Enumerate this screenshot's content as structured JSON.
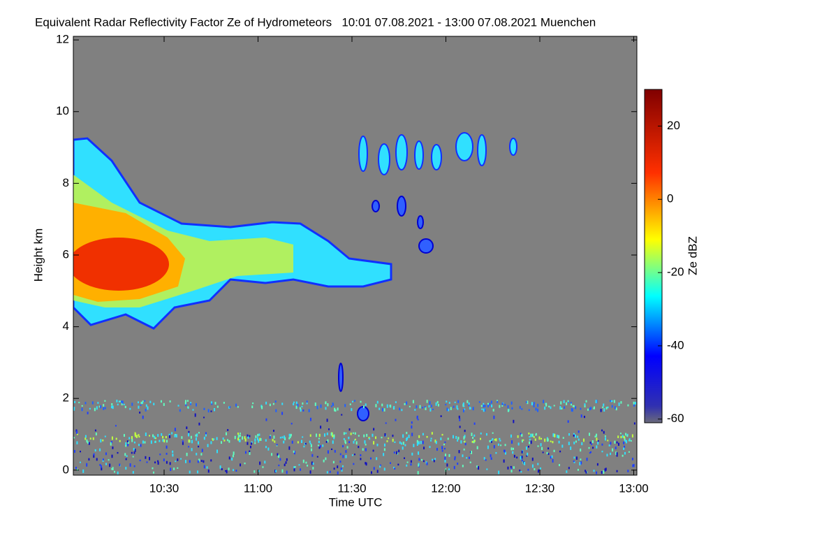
{
  "chart_data": {
    "type": "heatmap",
    "title": "Equivalent Radar Reflectivity Factor Ze of Hydrometeors   10:01 07.08.2021 - 13:00 07.08.2021 Muenchen",
    "x_label": "Time UTC",
    "y_label": "Height km",
    "xlim": [
      10.0167,
      13.0167
    ],
    "xticks": [
      {
        "value": 10.5,
        "label": "10:30"
      },
      {
        "value": 11,
        "label": "11:00"
      },
      {
        "value": 11.5,
        "label": "11:30"
      },
      {
        "value": 12,
        "label": "12:00"
      },
      {
        "value": 12.5,
        "label": "12:30"
      },
      {
        "value": 13,
        "label": "13:00"
      }
    ],
    "ylim": [
      -0.14,
      12.1
    ],
    "yticks": [
      0,
      2,
      4,
      6,
      8,
      10,
      12
    ],
    "colorbar": {
      "label": "Ze dBZ",
      "lim": [
        -61,
        30
      ],
      "ticks": [
        20,
        0,
        -20,
        -40,
        -60
      ]
    }
  }
}
